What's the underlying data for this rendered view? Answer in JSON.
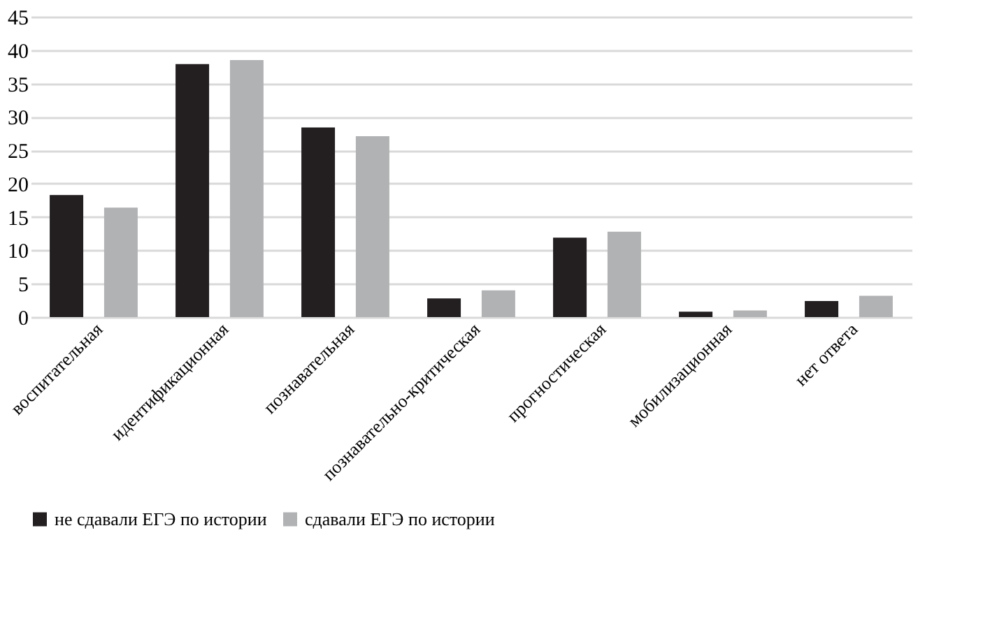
{
  "chart_data": {
    "type": "bar",
    "categories": [
      "воспитательная",
      "идентификационная",
      "познавательная",
      "познавательно-критическая",
      "прогностическая",
      "мобилизационная",
      "нет ответа"
    ],
    "series": [
      {
        "name": "не сдавали ЕГЭ по истории",
        "color": "#231f20",
        "values": [
          18.3,
          37.9,
          28.4,
          2.8,
          11.9,
          0.8,
          2.4
        ]
      },
      {
        "name": "сдавали ЕГЭ по истории",
        "color": "#b1b2b4",
        "values": [
          16.4,
          38.5,
          27.1,
          4.0,
          12.8,
          1.0,
          3.2
        ]
      }
    ],
    "ylim": [
      0,
      45
    ],
    "yticks": [
      0,
      5,
      10,
      15,
      20,
      25,
      30,
      35,
      40,
      45
    ],
    "grid": "y",
    "legend": "bottom"
  }
}
